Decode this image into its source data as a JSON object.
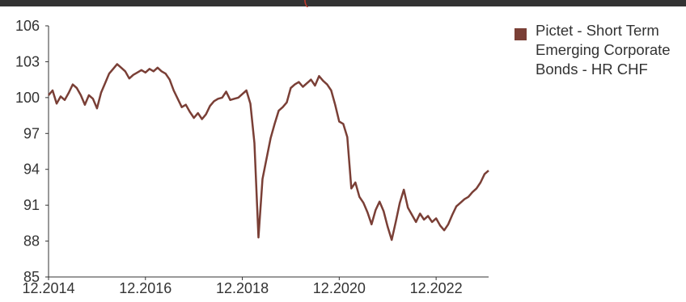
{
  "chart_data": {
    "type": "line",
    "title_fragment": "(",
    "y_ticks": [
      "106",
      "103",
      "100",
      "97",
      "94",
      "91",
      "88",
      "85"
    ],
    "x_ticks": [
      "12.2014",
      "12.2016",
      "12.2018",
      "12.2020",
      "12.2022"
    ],
    "ylim": [
      85,
      106
    ],
    "grid": false,
    "legend_position": "right",
    "series": [
      {
        "name": "Pictet - Short Term Emerging Corporate Bonds - HR CHF",
        "color": "#7a3f36",
        "points": [
          [
            "2014-12",
            100.2
          ],
          [
            "2015-01",
            100.6
          ],
          [
            "2015-02",
            99.5
          ],
          [
            "2015-03",
            100.1
          ],
          [
            "2015-04",
            99.8
          ],
          [
            "2015-05",
            100.4
          ],
          [
            "2015-06",
            101.1
          ],
          [
            "2015-07",
            100.8
          ],
          [
            "2015-08",
            100.2
          ],
          [
            "2015-09",
            99.4
          ],
          [
            "2015-10",
            100.2
          ],
          [
            "2015-11",
            99.9
          ],
          [
            "2015-12",
            99.1
          ],
          [
            "2016-01",
            100.4
          ],
          [
            "2016-02",
            101.2
          ],
          [
            "2016-03",
            102.0
          ],
          [
            "2016-04",
            102.4
          ],
          [
            "2016-05",
            102.8
          ],
          [
            "2016-06",
            102.5
          ],
          [
            "2016-07",
            102.2
          ],
          [
            "2016-08",
            101.6
          ],
          [
            "2016-09",
            101.9
          ],
          [
            "2016-10",
            102.1
          ],
          [
            "2016-11",
            102.3
          ],
          [
            "2016-12",
            102.1
          ],
          [
            "2017-01",
            102.4
          ],
          [
            "2017-02",
            102.2
          ],
          [
            "2017-03",
            102.5
          ],
          [
            "2017-04",
            102.2
          ],
          [
            "2017-05",
            102.0
          ],
          [
            "2017-06",
            101.5
          ],
          [
            "2017-07",
            100.6
          ],
          [
            "2017-08",
            99.9
          ],
          [
            "2017-09",
            99.2
          ],
          [
            "2017-10",
            99.4
          ],
          [
            "2017-11",
            98.8
          ],
          [
            "2017-12",
            98.3
          ],
          [
            "2018-01",
            98.7
          ],
          [
            "2018-02",
            98.2
          ],
          [
            "2018-03",
            98.6
          ],
          [
            "2018-04",
            99.3
          ],
          [
            "2018-05",
            99.7
          ],
          [
            "2018-06",
            99.9
          ],
          [
            "2018-07",
            100.0
          ],
          [
            "2018-08",
            100.5
          ],
          [
            "2018-09",
            99.8
          ],
          [
            "2018-10",
            99.9
          ],
          [
            "2018-11",
            100.0
          ],
          [
            "2018-12",
            100.3
          ],
          [
            "2019-01",
            100.6
          ],
          [
            "2019-02",
            99.5
          ],
          [
            "2019-03",
            96.2
          ],
          [
            "2019-04",
            88.3
          ],
          [
            "2019-05",
            93.2
          ],
          [
            "2019-06",
            94.9
          ],
          [
            "2019-07",
            96.6
          ],
          [
            "2019-08",
            97.8
          ],
          [
            "2019-09",
            98.9
          ],
          [
            "2019-10",
            99.2
          ],
          [
            "2019-11",
            99.6
          ],
          [
            "2019-12",
            100.8
          ],
          [
            "2020-01",
            101.1
          ],
          [
            "2020-02",
            101.3
          ],
          [
            "2020-03",
            100.9
          ],
          [
            "2020-04",
            101.2
          ],
          [
            "2020-05",
            101.5
          ],
          [
            "2020-06",
            101.0
          ],
          [
            "2020-07",
            101.8
          ],
          [
            "2020-08",
            101.4
          ],
          [
            "2020-09",
            101.1
          ],
          [
            "2020-10",
            100.6
          ],
          [
            "2020-11",
            99.4
          ],
          [
            "2020-12",
            98.0
          ],
          [
            "2021-01",
            97.8
          ],
          [
            "2021-02",
            96.7
          ],
          [
            "2021-03",
            92.4
          ],
          [
            "2021-04",
            92.9
          ],
          [
            "2021-05",
            91.7
          ],
          [
            "2021-06",
            91.2
          ],
          [
            "2021-07",
            90.4
          ],
          [
            "2021-08",
            89.4
          ],
          [
            "2021-09",
            90.6
          ],
          [
            "2021-10",
            91.3
          ],
          [
            "2021-11",
            90.5
          ],
          [
            "2021-12",
            89.2
          ],
          [
            "2022-01",
            88.1
          ],
          [
            "2022-02",
            89.6
          ],
          [
            "2022-03",
            91.2
          ],
          [
            "2022-04",
            92.3
          ],
          [
            "2022-05",
            90.8
          ],
          [
            "2022-06",
            90.2
          ],
          [
            "2022-07",
            89.6
          ],
          [
            "2022-08",
            90.3
          ],
          [
            "2022-09",
            89.8
          ],
          [
            "2022-10",
            90.1
          ],
          [
            "2022-11",
            89.6
          ],
          [
            "2022-12",
            89.9
          ],
          [
            "2023-01",
            89.3
          ],
          [
            "2023-02",
            88.9
          ],
          [
            "2023-03",
            89.4
          ],
          [
            "2023-04",
            90.2
          ],
          [
            "2023-05",
            90.9
          ],
          [
            "2023-06",
            91.2
          ],
          [
            "2023-07",
            91.5
          ],
          [
            "2023-08",
            91.7
          ],
          [
            "2023-09",
            92.1
          ],
          [
            "2023-10",
            92.4
          ],
          [
            "2023-11",
            92.9
          ],
          [
            "2023-12",
            93.6
          ],
          [
            "2024-01",
            93.9
          ]
        ]
      }
    ]
  }
}
